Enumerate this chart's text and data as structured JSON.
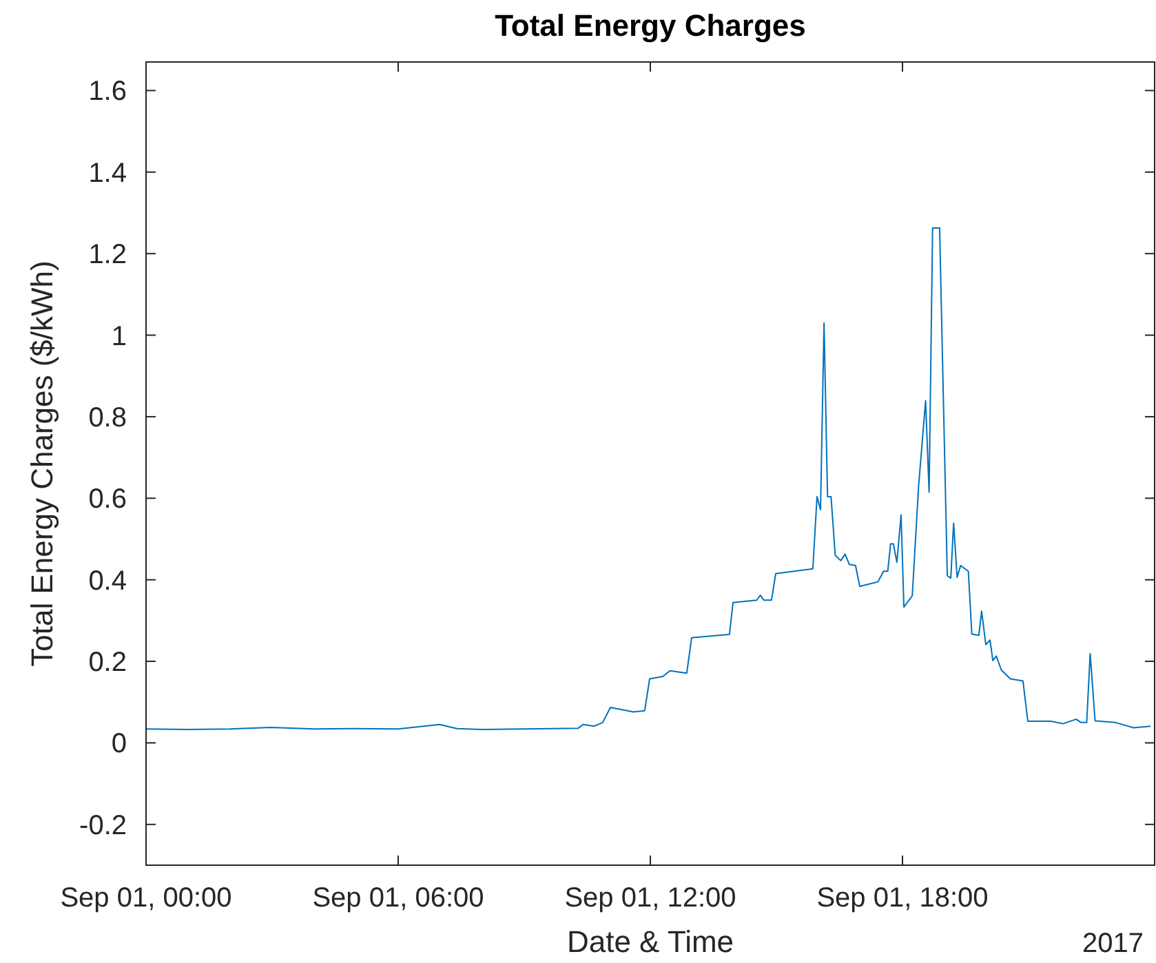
{
  "chart_data": {
    "type": "line",
    "title": "Total Energy Charges",
    "xlabel": "Date & Time",
    "ylabel": "Total Energy Charges ($/kWh)",
    "annotations": [
      "2017"
    ],
    "xlim": [
      "2017-09-01T00:00",
      "2017-09-02T00:00"
    ],
    "xticks": [
      {
        "value": "2017-09-01T00:00",
        "label": "Sep 01, 00:00"
      },
      {
        "value": "2017-09-01T06:00",
        "label": "Sep 01, 06:00"
      },
      {
        "value": "2017-09-01T12:00",
        "label": "Sep 01, 12:00"
      },
      {
        "value": "2017-09-01T18:00",
        "label": "Sep 01, 18:00"
      }
    ],
    "ylim": [
      -0.3,
      1.67
    ],
    "yticks": [
      -0.2,
      0,
      0.2,
      0.4,
      0.6,
      0.8,
      1,
      1.2,
      1.4,
      1.6
    ],
    "grid": false,
    "marker": "none",
    "line_style": "solid",
    "series": [
      {
        "color": "#0072bd",
        "x": [
          "2017-09-01T00:00",
          "2017-09-01T01:00",
          "2017-09-01T02:00",
          "2017-09-01T02:58",
          "2017-09-01T04:00",
          "2017-09-01T05:00",
          "2017-09-01T06:00",
          "2017-09-01T06:59",
          "2017-09-01T07:24",
          "2017-09-01T08:00",
          "2017-09-01T08:56",
          "2017-09-01T10:17",
          "2017-09-01T10:24",
          "2017-09-01T10:40",
          "2017-09-01T10:52",
          "2017-09-01T11:03",
          "2017-09-01T11:36",
          "2017-09-01T11:52",
          "2017-09-01T11:59",
          "2017-09-01T12:18",
          "2017-09-01T12:28",
          "2017-09-01T12:52",
          "2017-09-01T12:59",
          "2017-09-01T13:53",
          "2017-09-01T13:58",
          "2017-09-01T14:32",
          "2017-09-01T14:37",
          "2017-09-01T14:42",
          "2017-09-01T14:53",
          "2017-09-01T14:59",
          "2017-09-01T15:52",
          "2017-09-01T15:58",
          "2017-09-01T16:03",
          "2017-09-01T16:08",
          "2017-09-01T16:13",
          "2017-09-01T16:18",
          "2017-09-01T16:24",
          "2017-09-01T16:32",
          "2017-09-01T16:38",
          "2017-09-01T16:44",
          "2017-09-01T16:53",
          "2017-09-01T16:59",
          "2017-09-01T17:25",
          "2017-09-01T17:33",
          "2017-09-01T17:39",
          "2017-09-01T17:43",
          "2017-09-01T17:47",
          "2017-09-01T17:52",
          "2017-09-01T17:58",
          "2017-09-01T18:02",
          "2017-09-01T18:14",
          "2017-09-01T18:23",
          "2017-09-01T18:33",
          "2017-09-01T18:38",
          "2017-09-01T18:43",
          "2017-09-01T18:53",
          "2017-09-01T19:04",
          "2017-09-01T19:09",
          "2017-09-01T19:13",
          "2017-09-01T19:18",
          "2017-09-01T19:23",
          "2017-09-01T19:34",
          "2017-09-01T19:39",
          "2017-09-01T19:49",
          "2017-09-01T19:53",
          "2017-09-01T19:59",
          "2017-09-01T20:05",
          "2017-09-01T20:09",
          "2017-09-01T20:14",
          "2017-09-01T20:21",
          "2017-09-01T20:34",
          "2017-09-01T20:52",
          "2017-09-01T20:59",
          "2017-09-01T21:32",
          "2017-09-01T21:49",
          "2017-09-01T22:08",
          "2017-09-01T22:15",
          "2017-09-01T22:23",
          "2017-09-01T22:28",
          "2017-09-01T22:35",
          "2017-09-01T23:04",
          "2017-09-01T23:30",
          "2017-09-01T23:54"
        ],
        "values": [
          0.034,
          0.033,
          0.034,
          0.038,
          0.034,
          0.035,
          0.034,
          0.045,
          0.035,
          0.033,
          0.034,
          0.036,
          0.045,
          0.041,
          0.05,
          0.087,
          0.076,
          0.079,
          0.157,
          0.163,
          0.177,
          0.171,
          0.258,
          0.266,
          0.344,
          0.35,
          0.362,
          0.35,
          0.35,
          0.415,
          0.427,
          0.604,
          0.572,
          1.03,
          0.604,
          0.604,
          0.46,
          0.447,
          0.463,
          0.438,
          0.435,
          0.384,
          0.395,
          0.421,
          0.421,
          0.488,
          0.488,
          0.443,
          0.559,
          0.333,
          0.361,
          0.629,
          0.839,
          0.615,
          1.263,
          1.263,
          0.41,
          0.404,
          0.539,
          0.406,
          0.435,
          0.421,
          0.267,
          0.264,
          0.323,
          0.241,
          0.252,
          0.202,
          0.213,
          0.179,
          0.157,
          0.152,
          0.053,
          0.053,
          0.047,
          0.058,
          0.05,
          0.05,
          0.219,
          0.054,
          0.05,
          0.037,
          0.041
        ]
      }
    ]
  }
}
